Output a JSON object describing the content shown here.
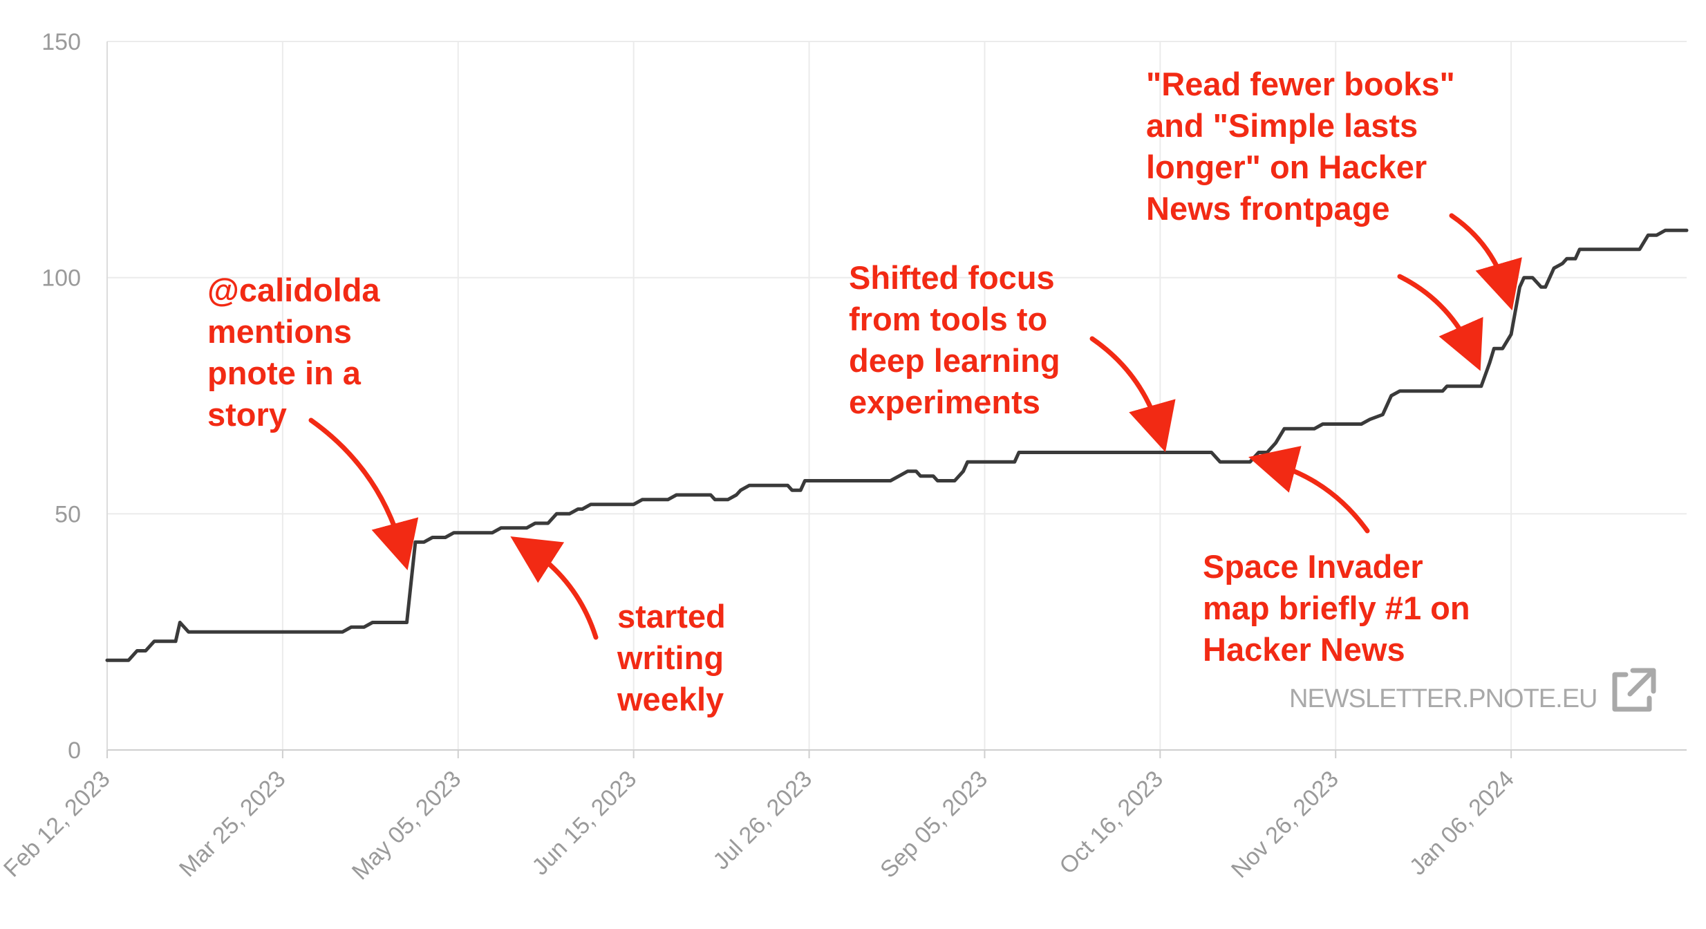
{
  "chart_data": {
    "type": "line",
    "title": "",
    "xlabel": "",
    "ylabel": "",
    "ylim": [
      0,
      150
    ],
    "y_ticks": [
      "0",
      "50",
      "100",
      "150"
    ],
    "x_tick_labels": [
      "Feb 12, 2023",
      "Mar 25, 2023",
      "May 05, 2023",
      "Jun 15, 2023",
      "Jul 26, 2023",
      "Sep 05, 2023",
      "Oct 16, 2023",
      "Nov 26, 2023",
      "Jan 06, 2024"
    ],
    "x_ticks": [
      "2023-02-12",
      "2023-03-25",
      "2023-05-05",
      "2023-06-15",
      "2023-07-26",
      "2023-09-05",
      "2023-10-16",
      "2023-11-26",
      "2024-01-06"
    ],
    "xlim": [
      "2023-02-12",
      "2024-02-16"
    ],
    "grid": true,
    "line_color": "#3a3a3a",
    "annotation_color": "#f22a14",
    "series": [
      {
        "name": "",
        "points": [
          [
            "2023-02-12",
            19
          ],
          [
            "2023-02-17",
            19
          ],
          [
            "2023-02-19",
            21
          ],
          [
            "2023-02-21",
            21
          ],
          [
            "2023-02-23",
            23
          ],
          [
            "2023-02-28",
            23
          ],
          [
            "2023-03-01",
            27
          ],
          [
            "2023-03-03",
            25
          ],
          [
            "2023-04-08",
            25
          ],
          [
            "2023-04-10",
            26
          ],
          [
            "2023-04-13",
            26
          ],
          [
            "2023-04-15",
            27
          ],
          [
            "2023-04-23",
            27
          ],
          [
            "2023-04-25",
            44
          ],
          [
            "2023-04-27",
            44
          ],
          [
            "2023-04-29",
            45
          ],
          [
            "2023-05-02",
            45
          ],
          [
            "2023-05-04",
            46
          ],
          [
            "2023-05-13",
            46
          ],
          [
            "2023-05-15",
            47
          ],
          [
            "2023-05-21",
            47
          ],
          [
            "2023-05-23",
            48
          ],
          [
            "2023-05-26",
            48
          ],
          [
            "2023-05-28",
            50
          ],
          [
            "2023-05-31",
            50
          ],
          [
            "2023-06-02",
            51
          ],
          [
            "2023-06-03",
            51
          ],
          [
            "2023-06-05",
            52
          ],
          [
            "2023-06-15",
            52
          ],
          [
            "2023-06-17",
            53
          ],
          [
            "2023-06-23",
            53
          ],
          [
            "2023-06-25",
            54
          ],
          [
            "2023-07-03",
            54
          ],
          [
            "2023-07-04",
            53
          ],
          [
            "2023-07-07",
            53
          ],
          [
            "2023-07-09",
            54
          ],
          [
            "2023-07-10",
            55
          ],
          [
            "2023-07-12",
            56
          ],
          [
            "2023-07-21",
            56
          ],
          [
            "2023-07-22",
            55
          ],
          [
            "2023-07-24",
            55
          ],
          [
            "2023-07-25",
            57
          ],
          [
            "2023-08-14",
            57
          ],
          [
            "2023-08-16",
            58
          ],
          [
            "2023-08-18",
            59
          ],
          [
            "2023-08-20",
            59
          ],
          [
            "2023-08-21",
            58
          ],
          [
            "2023-08-24",
            58
          ],
          [
            "2023-08-25",
            57
          ],
          [
            "2023-08-29",
            57
          ],
          [
            "2023-08-31",
            59
          ],
          [
            "2023-09-01",
            61
          ],
          [
            "2023-09-12",
            61
          ],
          [
            "2023-09-13",
            63
          ],
          [
            "2023-10-28",
            63
          ],
          [
            "2023-10-30",
            61
          ],
          [
            "2023-11-06",
            61
          ],
          [
            "2023-11-08",
            63
          ],
          [
            "2023-11-10",
            63
          ],
          [
            "2023-11-12",
            65
          ],
          [
            "2023-11-14",
            68
          ],
          [
            "2023-11-21",
            68
          ],
          [
            "2023-11-23",
            69
          ],
          [
            "2023-12-02",
            69
          ],
          [
            "2023-12-04",
            70
          ],
          [
            "2023-12-07",
            71
          ],
          [
            "2023-12-08",
            73
          ],
          [
            "2023-12-09",
            75
          ],
          [
            "2023-12-11",
            76
          ],
          [
            "2023-12-21",
            76
          ],
          [
            "2023-12-22",
            77
          ],
          [
            "2023-12-30",
            77
          ],
          [
            "2024-01-01",
            82
          ],
          [
            "2024-01-02",
            85
          ],
          [
            "2024-01-04",
            85
          ],
          [
            "2024-01-06",
            88
          ],
          [
            "2024-01-08",
            98
          ],
          [
            "2024-01-09",
            100
          ],
          [
            "2024-01-11",
            100
          ],
          [
            "2024-01-13",
            98
          ],
          [
            "2024-01-14",
            98
          ],
          [
            "2024-01-16",
            102
          ],
          [
            "2024-01-18",
            103
          ],
          [
            "2024-01-19",
            104
          ],
          [
            "2024-01-21",
            104
          ],
          [
            "2024-01-22",
            106
          ],
          [
            "2024-02-05",
            106
          ],
          [
            "2024-02-07",
            109
          ],
          [
            "2024-02-09",
            109
          ],
          [
            "2024-02-11",
            110
          ],
          [
            "2024-02-16",
            110
          ]
        ]
      }
    ],
    "annotations": [
      {
        "lines": [
          "@calidolda",
          "mentions",
          "pnote in a",
          "story"
        ],
        "arrow_target": [
          "2023-04-22",
          42
        ]
      },
      {
        "lines": [
          "started",
          "writing",
          "weekly"
        ],
        "arrow_target": [
          "2023-05-21",
          43
        ]
      },
      {
        "lines": [
          "Shifted focus",
          "from tools to",
          "deep learning",
          "experiments"
        ],
        "arrow_target": [
          "2023-10-16",
          67
        ]
      },
      {
        "lines": [
          "Space Invader",
          "map briefly #1 on",
          "Hacker News"
        ],
        "arrow_target": [
          "2023-11-10",
          61
        ]
      },
      {
        "lines": [
          "\"Read fewer books\"",
          "and \"Simple lasts",
          "longer\" on Hacker",
          "News frontpage"
        ],
        "arrow_targets": [
          [
            "2023-12-28",
            84
          ],
          [
            "2024-01-05",
            97
          ]
        ]
      }
    ],
    "watermark": "NEWSLETTER.PNOTE.EU"
  }
}
